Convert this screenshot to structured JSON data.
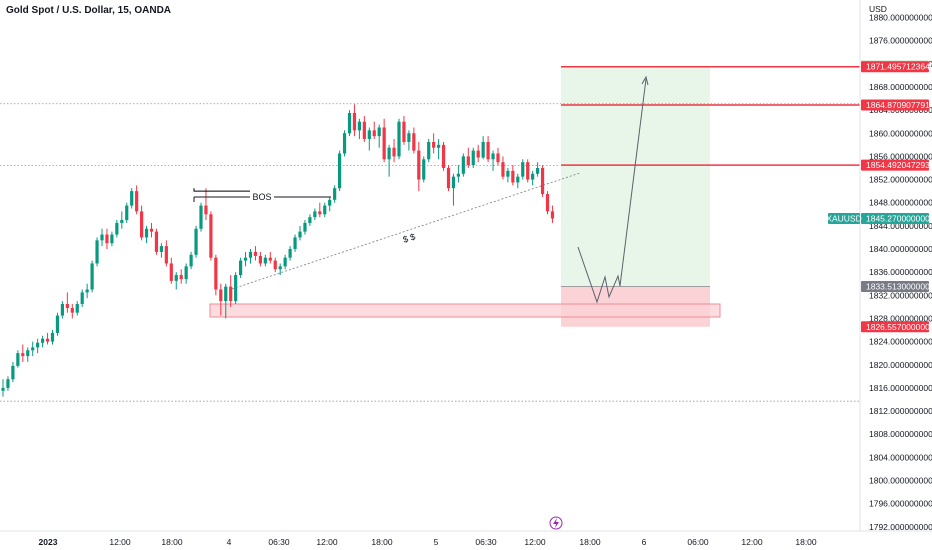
{
  "header": {
    "title": "Gold Spot / U.S. Dollar, 15, OANDA"
  },
  "colors": {
    "up": "#089981",
    "down": "#f23645",
    "target": "#f23645",
    "profit_zone": "#e8f5e9",
    "loss_zone": "#fbd3d6",
    "current": "#26a69a",
    "entry": "#787b86",
    "badge_green": "#a5d6a7"
  },
  "chart_data": {
    "type": "candlestick",
    "currency_label": "USD",
    "x_ticks": [
      "2023",
      "12:00",
      "18:00",
      "4",
      "06:30",
      "12:00",
      "18:00",
      "5",
      "06:30",
      "12:00",
      "18:00",
      "6",
      "06:00",
      "12:00",
      "18:00"
    ],
    "ylim": [
      1790.5,
      1882
    ],
    "y_ticks": [
      "1792.0000000000",
      "1796.0000000000",
      "1800.0000000000",
      "1804.0000000000",
      "1808.0000000000",
      "1812.0000000000",
      "1816.0000000000",
      "1820.0000000000",
      "1824.0000000000",
      "1828.0000000000",
      "1832.0000000000",
      "1836.0000000000",
      "1840.0000000000",
      "1844.0000000000",
      "1848.0000000000",
      "1852.0000000000",
      "1856.0000000000",
      "1860.0000000000",
      "1864.0000000000",
      "1868.0000000000",
      "1872.0000000000",
      "1876.0000000000",
      "1880.0000000000"
    ],
    "symbol": "XAUUSD",
    "current_price": {
      "label": "1845.2700000000",
      "value": 1845.27
    },
    "price_labels": [
      {
        "label": "1871.6060000000",
        "value": 1871.606,
        "role": "profit-target"
      },
      {
        "label": "1871.4957123647",
        "value": 1871.4957,
        "role": "target-line"
      },
      {
        "label": "1864.8709077914",
        "value": 1864.8709,
        "role": "target-line"
      },
      {
        "label": "1854.4920472932",
        "value": 1854.492,
        "role": "target-line"
      },
      {
        "label": "1833.5130000000",
        "value": 1833.513,
        "role": "entry"
      },
      {
        "label": "1826.5570000000",
        "value": 1826.557,
        "role": "stop"
      }
    ],
    "annotations": [
      "BOS",
      "$ $"
    ],
    "candles": [
      [
        0,
        1815.5,
        1817.5,
        1814.5,
        1816.0
      ],
      [
        1,
        1816.0,
        1818.0,
        1815.5,
        1817.5
      ],
      [
        2,
        1817.5,
        1820.5,
        1817.0,
        1819.8
      ],
      [
        3,
        1819.8,
        1822.5,
        1819.5,
        1822.0
      ],
      [
        4,
        1822.0,
        1823.5,
        1820.5,
        1821.5
      ],
      [
        5,
        1821.5,
        1823.0,
        1820.5,
        1822.5
      ],
      [
        6,
        1822.5,
        1824.0,
        1821.5,
        1823.0
      ],
      [
        7,
        1823.0,
        1824.5,
        1822.0,
        1823.8
      ],
      [
        8,
        1823.8,
        1825.0,
        1823.0,
        1824.5
      ],
      [
        9,
        1824.5,
        1825.5,
        1823.5,
        1824.0
      ],
      [
        10,
        1824.0,
        1826.0,
        1823.5,
        1825.5
      ],
      [
        11,
        1825.5,
        1829.0,
        1825.0,
        1828.5
      ],
      [
        12,
        1828.5,
        1831.0,
        1828.0,
        1830.5
      ],
      [
        13,
        1830.5,
        1832.5,
        1829.0,
        1829.8
      ],
      [
        14,
        1829.8,
        1830.5,
        1828.0,
        1829.0
      ],
      [
        15,
        1829.0,
        1831.0,
        1828.5,
        1830.5
      ],
      [
        16,
        1830.5,
        1833.0,
        1830.0,
        1832.5
      ],
      [
        17,
        1832.5,
        1834.0,
        1831.5,
        1833.0
      ],
      [
        18,
        1833.0,
        1838.0,
        1832.5,
        1837.5
      ],
      [
        19,
        1837.5,
        1842.0,
        1837.0,
        1841.5
      ],
      [
        20,
        1841.5,
        1843.5,
        1840.5,
        1842.5
      ],
      [
        21,
        1842.5,
        1843.5,
        1840.0,
        1841.0
      ],
      [
        22,
        1841.0,
        1843.0,
        1840.5,
        1842.5
      ],
      [
        23,
        1842.5,
        1845.0,
        1842.0,
        1844.5
      ],
      [
        24,
        1844.5,
        1846.5,
        1843.5,
        1845.0
      ],
      [
        25,
        1845.0,
        1848.0,
        1844.5,
        1847.5
      ],
      [
        26,
        1847.5,
        1850.5,
        1847.0,
        1850.0
      ],
      [
        27,
        1850.0,
        1851.0,
        1846.0,
        1846.5
      ],
      [
        28,
        1846.5,
        1847.5,
        1841.5,
        1842.0
      ],
      [
        29,
        1842.0,
        1844.0,
        1841.0,
        1843.5
      ],
      [
        30,
        1843.5,
        1844.5,
        1842.0,
        1843.0
      ],
      [
        31,
        1843.0,
        1843.5,
        1839.0,
        1839.5
      ],
      [
        32,
        1839.5,
        1841.0,
        1838.5,
        1840.5
      ],
      [
        33,
        1840.5,
        1841.5,
        1837.0,
        1837.5
      ],
      [
        34,
        1837.5,
        1838.5,
        1834.0,
        1834.5
      ],
      [
        35,
        1834.5,
        1836.0,
        1833.0,
        1835.5
      ],
      [
        36,
        1835.5,
        1836.5,
        1834.0,
        1834.8
      ],
      [
        37,
        1834.8,
        1837.5,
        1834.0,
        1837.0
      ],
      [
        38,
        1837.0,
        1839.5,
        1836.5,
        1839.0
      ],
      [
        39,
        1839.0,
        1844.0,
        1838.5,
        1843.5
      ],
      [
        40,
        1843.5,
        1848.0,
        1843.0,
        1847.5
      ],
      [
        41,
        1847.5,
        1850.5,
        1845.0,
        1846.0
      ],
      [
        42,
        1846.0,
        1846.5,
        1838.0,
        1838.5
      ],
      [
        43,
        1838.5,
        1839.0,
        1832.0,
        1833.0
      ],
      [
        44,
        1833.0,
        1834.0,
        1828.5,
        1831.0
      ],
      [
        45,
        1831.0,
        1834.0,
        1828.0,
        1833.5
      ],
      [
        46,
        1833.5,
        1835.5,
        1830.0,
        1831.0
      ],
      [
        47,
        1831.0,
        1836.0,
        1830.5,
        1835.5
      ],
      [
        48,
        1835.5,
        1838.5,
        1835.0,
        1838.0
      ],
      [
        49,
        1838.0,
        1839.5,
        1837.0,
        1838.5
      ],
      [
        50,
        1838.5,
        1840.0,
        1837.5,
        1839.5
      ],
      [
        51,
        1839.5,
        1840.5,
        1838.0,
        1838.8
      ],
      [
        52,
        1838.8,
        1839.5,
        1837.0,
        1837.5
      ],
      [
        53,
        1837.5,
        1839.0,
        1837.0,
        1838.5
      ],
      [
        54,
        1838.5,
        1839.5,
        1837.5,
        1838.0
      ],
      [
        55,
        1838.0,
        1838.5,
        1836.0,
        1836.5
      ],
      [
        56,
        1836.5,
        1837.5,
        1835.5,
        1837.0
      ],
      [
        57,
        1837.0,
        1839.0,
        1836.5,
        1838.5
      ],
      [
        58,
        1838.5,
        1840.5,
        1838.0,
        1840.0
      ],
      [
        59,
        1840.0,
        1842.5,
        1839.5,
        1842.0
      ],
      [
        60,
        1842.0,
        1844.0,
        1841.5,
        1843.0
      ],
      [
        61,
        1843.0,
        1845.0,
        1842.5,
        1844.5
      ],
      [
        62,
        1844.5,
        1846.0,
        1844.0,
        1845.5
      ],
      [
        63,
        1845.5,
        1847.0,
        1845.0,
        1846.5
      ],
      [
        64,
        1846.5,
        1848.0,
        1845.5,
        1846.0
      ],
      [
        65,
        1846.0,
        1848.0,
        1845.5,
        1847.5
      ],
      [
        66,
        1847.5,
        1849.0,
        1846.5,
        1848.5
      ],
      [
        67,
        1848.5,
        1851.0,
        1848.0,
        1850.5
      ],
      [
        68,
        1850.5,
        1857.0,
        1850.0,
        1856.5
      ],
      [
        69,
        1856.5,
        1860.5,
        1856.0,
        1860.0
      ],
      [
        70,
        1860.0,
        1864.0,
        1859.5,
        1863.5
      ],
      [
        71,
        1863.5,
        1865.0,
        1859.5,
        1860.5
      ],
      [
        72,
        1860.5,
        1862.5,
        1859.0,
        1862.0
      ],
      [
        73,
        1862.0,
        1863.0,
        1858.5,
        1859.0
      ],
      [
        74,
        1859.0,
        1861.0,
        1857.0,
        1860.5
      ],
      [
        75,
        1860.5,
        1862.0,
        1859.0,
        1859.5
      ],
      [
        76,
        1859.5,
        1861.5,
        1857.5,
        1861.0
      ],
      [
        77,
        1861.0,
        1862.5,
        1855.0,
        1855.5
      ],
      [
        78,
        1855.5,
        1858.0,
        1852.5,
        1857.5
      ],
      [
        79,
        1857.5,
        1859.0,
        1855.0,
        1856.0
      ],
      [
        80,
        1856.0,
        1862.5,
        1855.5,
        1862.0
      ],
      [
        81,
        1862.0,
        1863.0,
        1858.0,
        1858.5
      ],
      [
        82,
        1858.5,
        1860.5,
        1857.0,
        1860.0
      ],
      [
        83,
        1860.0,
        1861.0,
        1856.5,
        1857.0
      ],
      [
        84,
        1857.0,
        1858.5,
        1850.0,
        1852.0
      ],
      [
        85,
        1852.0,
        1856.0,
        1851.5,
        1855.5
      ],
      [
        86,
        1855.5,
        1859.0,
        1855.0,
        1858.5
      ],
      [
        87,
        1858.5,
        1860.0,
        1856.5,
        1857.5
      ],
      [
        88,
        1857.5,
        1859.0,
        1855.5,
        1858.0
      ],
      [
        89,
        1858.0,
        1858.5,
        1853.5,
        1854.0
      ],
      [
        90,
        1854.0,
        1854.5,
        1850.0,
        1850.5
      ],
      [
        91,
        1850.5,
        1853.0,
        1847.5,
        1852.5
      ],
      [
        92,
        1852.5,
        1854.5,
        1851.5,
        1853.0
      ],
      [
        93,
        1853.0,
        1856.5,
        1852.5,
        1856.0
      ],
      [
        94,
        1856.0,
        1857.5,
        1854.0,
        1854.5
      ],
      [
        95,
        1854.5,
        1857.5,
        1854.0,
        1857.0
      ],
      [
        96,
        1857.0,
        1858.0,
        1855.0,
        1855.8
      ],
      [
        97,
        1855.8,
        1859.5,
        1855.5,
        1858.5
      ],
      [
        98,
        1858.5,
        1859.5,
        1855.0,
        1855.5
      ],
      [
        99,
        1855.5,
        1857.0,
        1853.5,
        1856.5
      ],
      [
        100,
        1856.5,
        1857.5,
        1854.5,
        1855.0
      ],
      [
        101,
        1855.0,
        1856.0,
        1852.0,
        1852.5
      ],
      [
        102,
        1852.5,
        1854.0,
        1851.5,
        1853.5
      ],
      [
        103,
        1853.5,
        1854.5,
        1851.0,
        1851.5
      ],
      [
        104,
        1851.5,
        1853.0,
        1850.5,
        1852.5
      ],
      [
        105,
        1852.5,
        1855.5,
        1852.0,
        1855.0
      ],
      [
        106,
        1855.0,
        1855.5,
        1851.5,
        1852.0
      ],
      [
        107,
        1852.0,
        1853.5,
        1851.0,
        1853.0
      ],
      [
        108,
        1853.0,
        1855.0,
        1852.5,
        1854.0
      ],
      [
        109,
        1854.0,
        1854.5,
        1849.0,
        1849.5
      ],
      [
        110,
        1849.5,
        1850.0,
        1846.0,
        1846.5
      ],
      [
        111,
        1846.5,
        1847.5,
        1844.5,
        1845.27
      ]
    ]
  }
}
